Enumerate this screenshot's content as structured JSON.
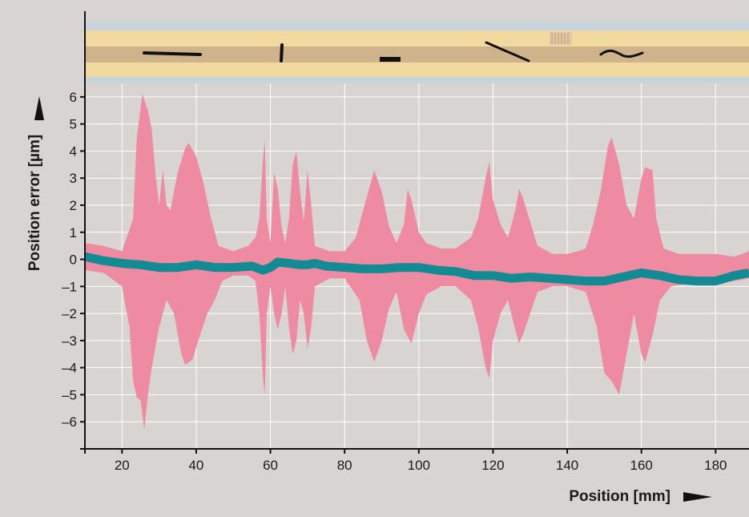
{
  "colors": {
    "background": "#d8d4d1",
    "grid": "#ffffff",
    "envelope": "#ee8aa2",
    "mean": "#138b92",
    "scale_light": "#f2d9a0",
    "scale_dark": "#cfb38a",
    "scale_glass": "#c7d4dc",
    "defect_marks": "#111111"
  },
  "chart_data": {
    "type": "area",
    "title": "",
    "xlabel": "Position [mm]",
    "ylabel": "Position error [µm]",
    "xlim": [
      10,
      189
    ],
    "ylim": [
      -7,
      6.5
    ],
    "grid": true,
    "x_ticks": [
      20,
      40,
      60,
      80,
      100,
      120,
      140,
      160,
      180
    ],
    "y_ticks": [
      6,
      5,
      4,
      3,
      2,
      1,
      0,
      -1,
      -2,
      -3,
      -4,
      -5,
      -6
    ],
    "y_tick_labels": [
      "6",
      "5",
      "4",
      "3",
      "2",
      "1",
      "0",
      "–1",
      "–2",
      "–3",
      "–4",
      "–5",
      "–6"
    ],
    "series": [
      {
        "role": "envelope-upper",
        "points": [
          [
            10,
            0.6
          ],
          [
            15,
            0.5
          ],
          [
            20,
            0.3
          ],
          [
            23,
            1.5
          ],
          [
            24,
            4.5
          ],
          [
            25.5,
            6.1
          ],
          [
            27,
            5.5
          ],
          [
            28,
            4.8
          ],
          [
            29,
            3.2
          ],
          [
            30,
            2.0
          ],
          [
            31,
            3.3
          ],
          [
            32,
            2.0
          ],
          [
            33,
            1.8
          ],
          [
            35,
            3.2
          ],
          [
            37,
            4.1
          ],
          [
            38,
            4.3
          ],
          [
            40,
            3.8
          ],
          [
            42,
            2.8
          ],
          [
            44,
            1.5
          ],
          [
            46,
            0.5
          ],
          [
            50,
            0.3
          ],
          [
            54,
            0.5
          ],
          [
            56,
            0.8
          ],
          [
            57,
            1.5
          ],
          [
            58,
            3.7
          ],
          [
            58.5,
            4.4
          ],
          [
            59,
            1.5
          ],
          [
            60,
            0.6
          ],
          [
            61,
            3.2
          ],
          [
            62,
            2.6
          ],
          [
            63,
            1.2
          ],
          [
            64,
            0.6
          ],
          [
            65,
            1.5
          ],
          [
            66,
            3.5
          ],
          [
            67,
            4.0
          ],
          [
            68,
            2.5
          ],
          [
            69,
            1.4
          ],
          [
            70,
            3.3
          ],
          [
            71,
            2.0
          ],
          [
            72,
            0.5
          ],
          [
            76,
            0.3
          ],
          [
            80,
            0.3
          ],
          [
            83,
            0.8
          ],
          [
            85,
            1.8
          ],
          [
            88,
            3.3
          ],
          [
            90,
            2.5
          ],
          [
            92,
            1.2
          ],
          [
            94,
            0.6
          ],
          [
            96,
            1.3
          ],
          [
            97,
            2.6
          ],
          [
            98,
            2.2
          ],
          [
            100,
            1.0
          ],
          [
            102,
            0.6
          ],
          [
            106,
            0.4
          ],
          [
            110,
            0.4
          ],
          [
            114,
            0.8
          ],
          [
            116,
            1.5
          ],
          [
            118,
            3.0
          ],
          [
            119,
            3.6
          ],
          [
            120,
            2.2
          ],
          [
            122,
            1.3
          ],
          [
            124,
            0.8
          ],
          [
            126,
            1.8
          ],
          [
            127,
            2.6
          ],
          [
            128,
            2.3
          ],
          [
            130,
            1.4
          ],
          [
            132,
            0.5
          ],
          [
            136,
            0.2
          ],
          [
            140,
            0.2
          ],
          [
            143,
            0.3
          ],
          [
            145,
            0.4
          ],
          [
            147,
            1.3
          ],
          [
            149,
            2.5
          ],
          [
            151,
            4.2
          ],
          [
            152,
            4.5
          ],
          [
            154,
            3.5
          ],
          [
            156,
            2.0
          ],
          [
            158,
            1.5
          ],
          [
            160,
            3.0
          ],
          [
            161,
            3.4
          ],
          [
            163,
            3.3
          ],
          [
            164,
            1.5
          ],
          [
            166,
            0.4
          ],
          [
            170,
            0.2
          ],
          [
            175,
            0.2
          ],
          [
            180,
            0.2
          ],
          [
            185,
            0.1
          ],
          [
            189,
            0.3
          ]
        ]
      },
      {
        "role": "envelope-lower",
        "points": [
          [
            10,
            -0.4
          ],
          [
            15,
            -0.5
          ],
          [
            20,
            -1.0
          ],
          [
            22,
            -2.5
          ],
          [
            23,
            -4.5
          ],
          [
            24,
            -5.1
          ],
          [
            25,
            -5.2
          ],
          [
            26,
            -6.3
          ],
          [
            27,
            -5.0
          ],
          [
            28,
            -4.0
          ],
          [
            30,
            -2.5
          ],
          [
            32,
            -1.5
          ],
          [
            34,
            -2.0
          ],
          [
            36,
            -3.5
          ],
          [
            37,
            -3.9
          ],
          [
            39,
            -3.7
          ],
          [
            41,
            -2.8
          ],
          [
            43,
            -2.0
          ],
          [
            45,
            -1.5
          ],
          [
            47,
            -0.8
          ],
          [
            50,
            -0.6
          ],
          [
            54,
            -0.6
          ],
          [
            56,
            -0.8
          ],
          [
            57,
            -2.0
          ],
          [
            58,
            -4.4
          ],
          [
            58.5,
            -5.0
          ],
          [
            59,
            -2.0
          ],
          [
            60,
            -1.0
          ],
          [
            61,
            -2.0
          ],
          [
            62,
            -2.6
          ],
          [
            63,
            -2.0
          ],
          [
            64,
            -1.0
          ],
          [
            65,
            -2.5
          ],
          [
            66,
            -3.5
          ],
          [
            67,
            -3.0
          ],
          [
            68,
            -1.5
          ],
          [
            69,
            -2.0
          ],
          [
            70,
            -3.3
          ],
          [
            71,
            -2.5
          ],
          [
            72,
            -1.0
          ],
          [
            76,
            -0.7
          ],
          [
            80,
            -0.7
          ],
          [
            84,
            -1.5
          ],
          [
            86,
            -3.0
          ],
          [
            88,
            -3.8
          ],
          [
            90,
            -3.0
          ],
          [
            92,
            -1.8
          ],
          [
            94,
            -1.2
          ],
          [
            96,
            -2.6
          ],
          [
            98,
            -3.1
          ],
          [
            100,
            -2.0
          ],
          [
            102,
            -1.3
          ],
          [
            106,
            -1.0
          ],
          [
            110,
            -1.0
          ],
          [
            114,
            -1.5
          ],
          [
            116,
            -2.5
          ],
          [
            118,
            -4.0
          ],
          [
            119,
            -4.4
          ],
          [
            120,
            -3.0
          ],
          [
            122,
            -2.0
          ],
          [
            124,
            -1.5
          ],
          [
            126,
            -2.6
          ],
          [
            127,
            -3.1
          ],
          [
            128,
            -2.8
          ],
          [
            130,
            -2.0
          ],
          [
            132,
            -1.2
          ],
          [
            136,
            -1.0
          ],
          [
            140,
            -1.0
          ],
          [
            145,
            -1.2
          ],
          [
            148,
            -2.5
          ],
          [
            150,
            -4.2
          ],
          [
            152,
            -4.5
          ],
          [
            154,
            -5.0
          ],
          [
            156,
            -3.5
          ],
          [
            158,
            -2.0
          ],
          [
            160,
            -3.5
          ],
          [
            161,
            -3.8
          ],
          [
            163,
            -2.8
          ],
          [
            165,
            -1.5
          ],
          [
            168,
            -1.0
          ],
          [
            172,
            -0.9
          ],
          [
            176,
            -0.9
          ],
          [
            180,
            -0.9
          ],
          [
            185,
            -0.8
          ],
          [
            189,
            -0.7
          ]
        ]
      },
      {
        "role": "mean",
        "points": [
          [
            10,
            0.1
          ],
          [
            15,
            -0.05
          ],
          [
            20,
            -0.15
          ],
          [
            25,
            -0.2
          ],
          [
            30,
            -0.3
          ],
          [
            35,
            -0.3
          ],
          [
            40,
            -0.2
          ],
          [
            45,
            -0.3
          ],
          [
            50,
            -0.3
          ],
          [
            55,
            -0.25
          ],
          [
            58,
            -0.4
          ],
          [
            60,
            -0.3
          ],
          [
            62,
            -0.1
          ],
          [
            65,
            -0.15
          ],
          [
            68,
            -0.2
          ],
          [
            70,
            -0.2
          ],
          [
            72,
            -0.15
          ],
          [
            75,
            -0.25
          ],
          [
            80,
            -0.3
          ],
          [
            85,
            -0.35
          ],
          [
            90,
            -0.35
          ],
          [
            95,
            -0.3
          ],
          [
            100,
            -0.3
          ],
          [
            105,
            -0.4
          ],
          [
            110,
            -0.45
          ],
          [
            115,
            -0.6
          ],
          [
            120,
            -0.6
          ],
          [
            125,
            -0.7
          ],
          [
            130,
            -0.65
          ],
          [
            135,
            -0.7
          ],
          [
            140,
            -0.75
          ],
          [
            145,
            -0.8
          ],
          [
            150,
            -0.8
          ],
          [
            155,
            -0.65
          ],
          [
            160,
            -0.5
          ],
          [
            165,
            -0.6
          ],
          [
            170,
            -0.75
          ],
          [
            175,
            -0.8
          ],
          [
            180,
            -0.8
          ],
          [
            185,
            -0.6
          ],
          [
            189,
            -0.5
          ]
        ]
      }
    ]
  }
}
